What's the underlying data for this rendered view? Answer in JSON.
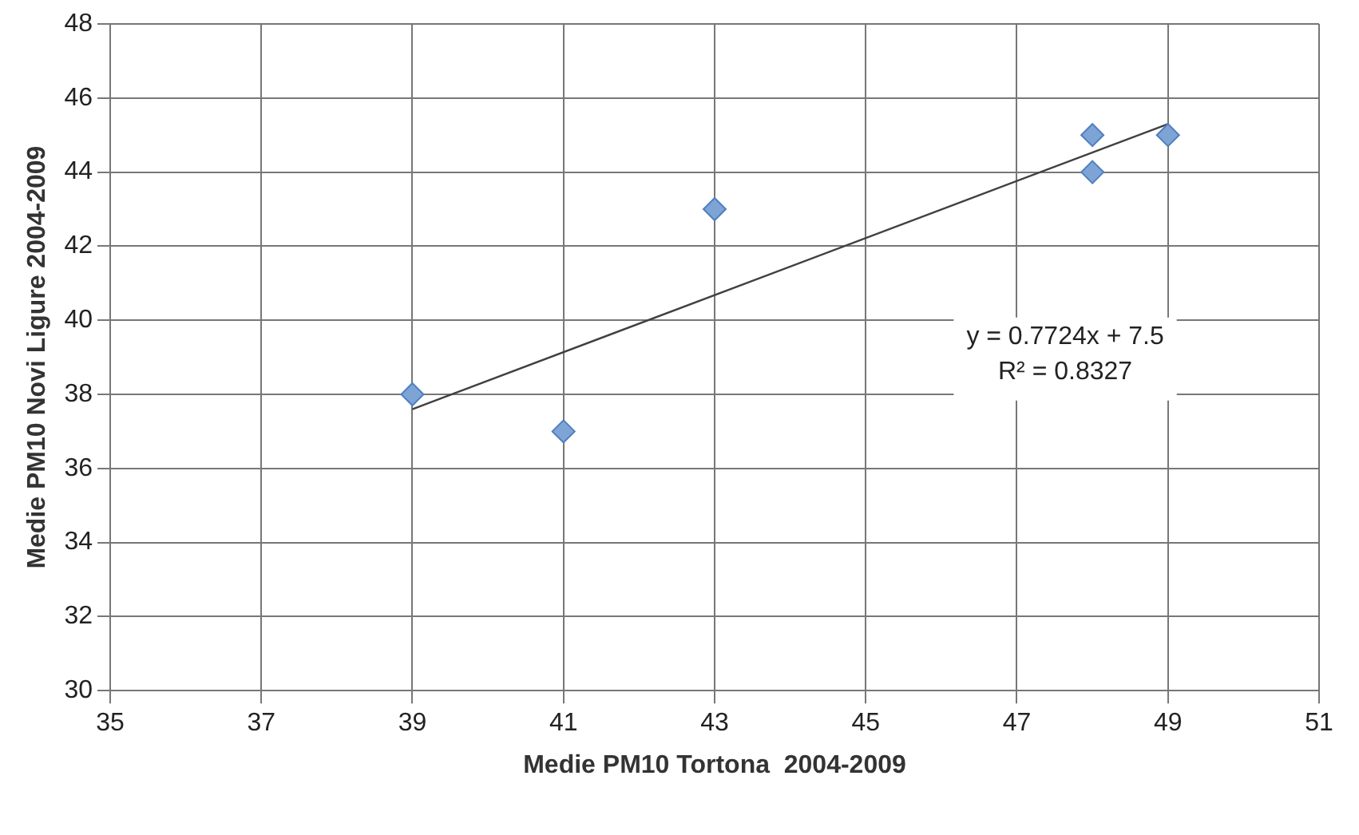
{
  "chart_data": {
    "type": "scatter",
    "xlabel": "Medie PM10 Tortona  2004-2009",
    "ylabel": "Medie PM10 Novi Ligure 2004-2009",
    "x": [
      39,
      41,
      43,
      48,
      48,
      49
    ],
    "series": [
      {
        "type": "scatter",
        "color": "#7ea4d6",
        "marker": "diamond",
        "values": [
          38,
          37,
          43,
          45,
          44,
          45
        ]
      },
      {
        "type": "line",
        "color": "#404040",
        "marker": "none",
        "x": [
          39,
          49
        ],
        "values": [
          37.6,
          45.3
        ]
      }
    ],
    "xlim": [
      35,
      51
    ],
    "xticks": [
      35,
      37,
      39,
      41,
      43,
      45,
      47,
      49,
      51
    ],
    "ylim": [
      30,
      48
    ],
    "yticks": [
      30,
      32,
      34,
      36,
      38,
      40,
      42,
      44,
      46,
      48
    ],
    "grid": true,
    "legend": false,
    "annotations": [
      "y = 0.7724x + 7.5",
      "R² = 0.8327"
    ]
  }
}
